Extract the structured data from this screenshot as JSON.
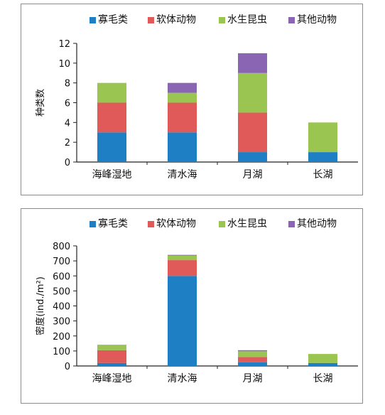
{
  "chart_data": [
    {
      "type": "bar",
      "stacked": true,
      "categories": [
        "海峰湿地",
        "清水海",
        "月湖",
        "长湖"
      ],
      "series": [
        {
          "name": "寡毛类",
          "color": "#1f7fc4",
          "values": [
            3,
            3,
            1,
            1
          ]
        },
        {
          "name": "软体动物",
          "color": "#e05a5a",
          "values": [
            3,
            3,
            4,
            0
          ]
        },
        {
          "name": "水生昆虫",
          "color": "#9ac551",
          "values": [
            2,
            1,
            4,
            3
          ]
        },
        {
          "name": "其他动物",
          "color": "#8a65b3",
          "values": [
            0,
            1,
            2,
            0
          ]
        }
      ],
      "ylabel": "种类数",
      "ylim": [
        0,
        12
      ],
      "yticks": [
        0,
        2,
        4,
        6,
        8,
        10,
        12
      ],
      "legend_position": "top",
      "grid": false
    },
    {
      "type": "bar",
      "stacked": true,
      "categories": [
        "海峰湿地",
        "清水海",
        "月湖",
        "长湖"
      ],
      "series": [
        {
          "name": "寡毛类",
          "color": "#1f7fc4",
          "values": [
            20,
            600,
            25,
            20
          ]
        },
        {
          "name": "软体动物",
          "color": "#e05a5a",
          "values": [
            85,
            105,
            35,
            0
          ]
        },
        {
          "name": "水生昆虫",
          "color": "#9ac551",
          "values": [
            32,
            30,
            38,
            60
          ]
        },
        {
          "name": "其他动物",
          "color": "#8a65b3",
          "values": [
            3,
            5,
            7,
            0
          ]
        }
      ],
      "ylabel": "密度(ind./m²)",
      "ylim": [
        0,
        800
      ],
      "yticks": [
        0,
        100,
        200,
        300,
        400,
        500,
        600,
        700,
        800
      ],
      "legend_position": "top",
      "grid": false
    }
  ]
}
